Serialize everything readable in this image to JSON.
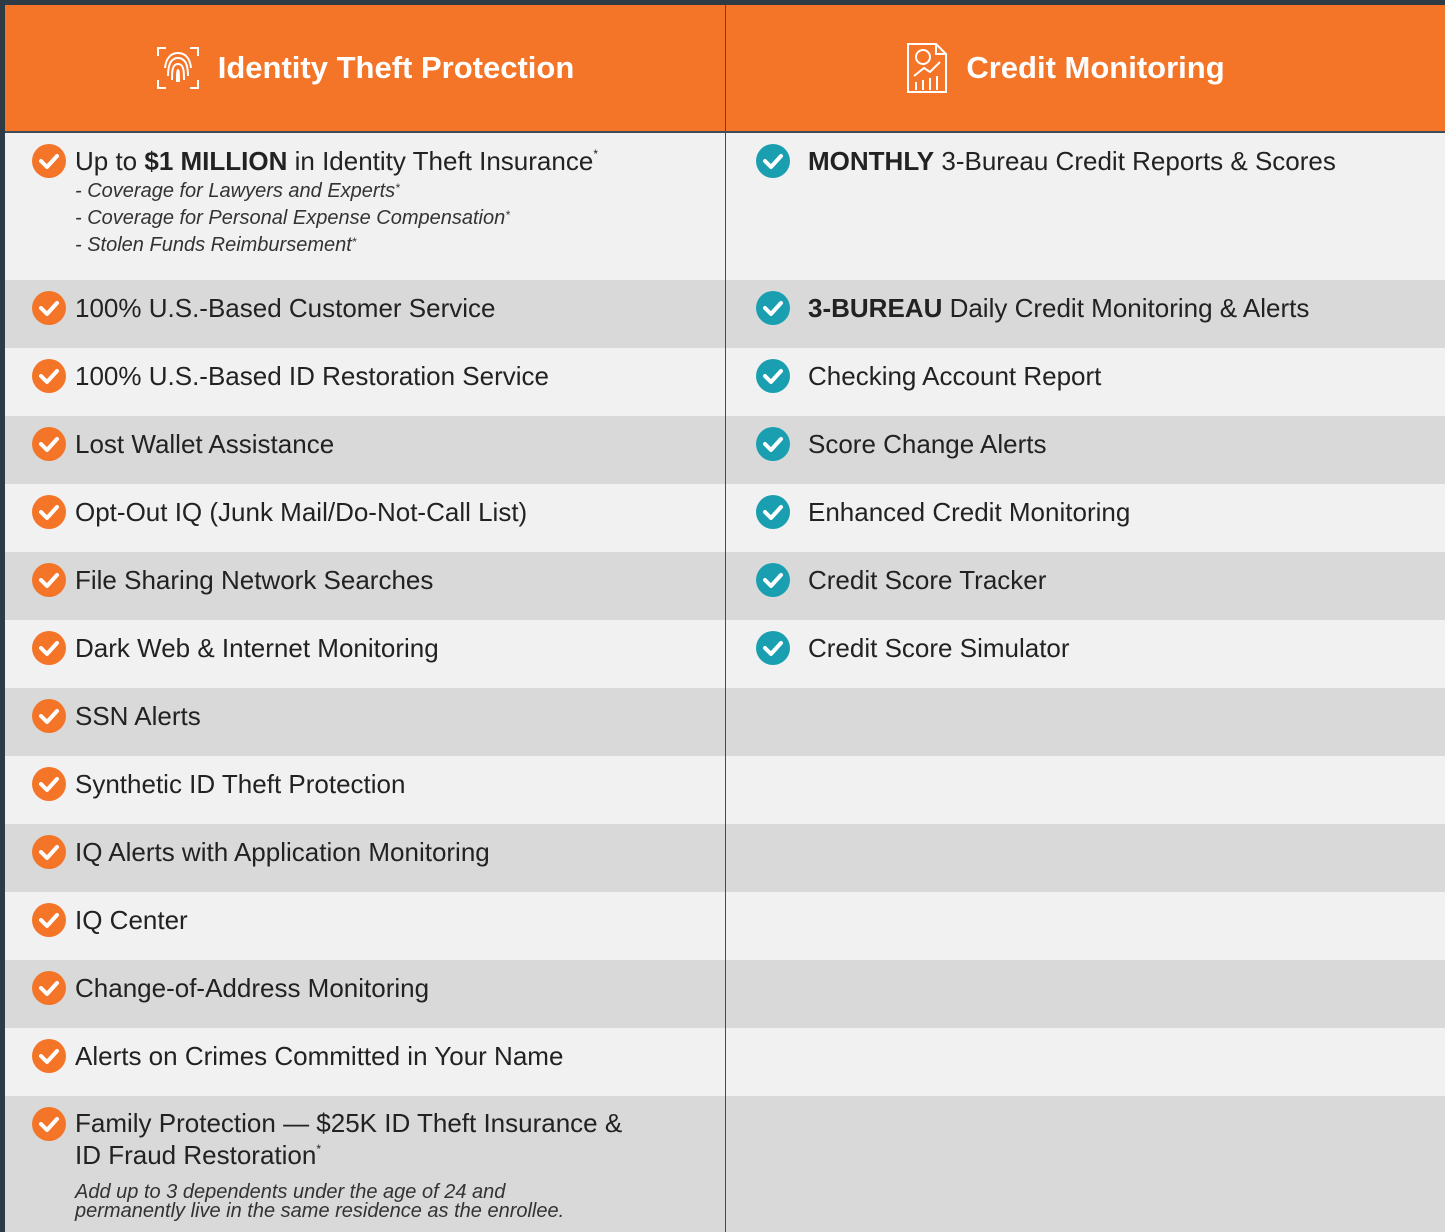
{
  "header_color": "#f47428",
  "columns": [
    {
      "title": "Identity Theft Protection",
      "check_color": "#f47428",
      "items": [
        {
          "segments": [
            "Up to ",
            {
              "bold": "$1 MILLION"
            },
            " in Identity Theft Insurance",
            {
              "sup": "*"
            }
          ],
          "sub": [
            [
              "- Coverage for Lawyers and Experts",
              {
                "sup": "*"
              }
            ],
            [
              "- Coverage for Personal Expense Compensation",
              {
                "sup": "*"
              }
            ],
            [
              "- Stolen Funds Reimbursement",
              {
                "sup": "*"
              }
            ]
          ]
        },
        {
          "segments": [
            "100% U.S.-Based Customer Service"
          ]
        },
        {
          "segments": [
            "100% U.S.-Based ID Restoration Service"
          ]
        },
        {
          "segments": [
            "Lost Wallet Assistance"
          ]
        },
        {
          "segments": [
            "Opt-Out IQ (Junk Mail/Do-Not-Call List)"
          ]
        },
        {
          "segments": [
            "File Sharing Network Searches"
          ]
        },
        {
          "segments": [
            "Dark Web & Internet Monitoring"
          ]
        },
        {
          "segments": [
            "SSN Alerts"
          ]
        },
        {
          "segments": [
            "Synthetic ID Theft Protection"
          ]
        },
        {
          "segments": [
            "IQ Alerts with Application Monitoring"
          ]
        },
        {
          "segments": [
            "IQ Center"
          ]
        },
        {
          "segments": [
            "Change-of-Address Monitoring"
          ]
        },
        {
          "segments": [
            "Alerts on Crimes Committed in Your Name"
          ]
        },
        {
          "segments": [
            "Family Protection — $25K ID Theft Insurance & ID Fraud Restoration",
            {
              "sup": "*"
            }
          ],
          "note": "Add up to 3 dependents under the age of 24 and permanently live in the same residence as the enrollee."
        }
      ]
    },
    {
      "title": "Credit Monitoring",
      "check_color": "#1a9fb0",
      "items": [
        {
          "segments": [
            {
              "bold": "MONTHLY"
            },
            " 3-Bureau Credit Reports & Scores"
          ]
        },
        {
          "segments": [
            {
              "bold": "3-BUREAU"
            },
            " Daily Credit Monitoring & Alerts"
          ]
        },
        {
          "segments": [
            "Checking Account Report"
          ]
        },
        {
          "segments": [
            "Score Change Alerts"
          ]
        },
        {
          "segments": [
            "Enhanced Credit Monitoring"
          ]
        },
        {
          "segments": [
            "Credit Score Tracker"
          ]
        },
        {
          "segments": [
            "Credit Score Simulator"
          ]
        }
      ]
    }
  ]
}
